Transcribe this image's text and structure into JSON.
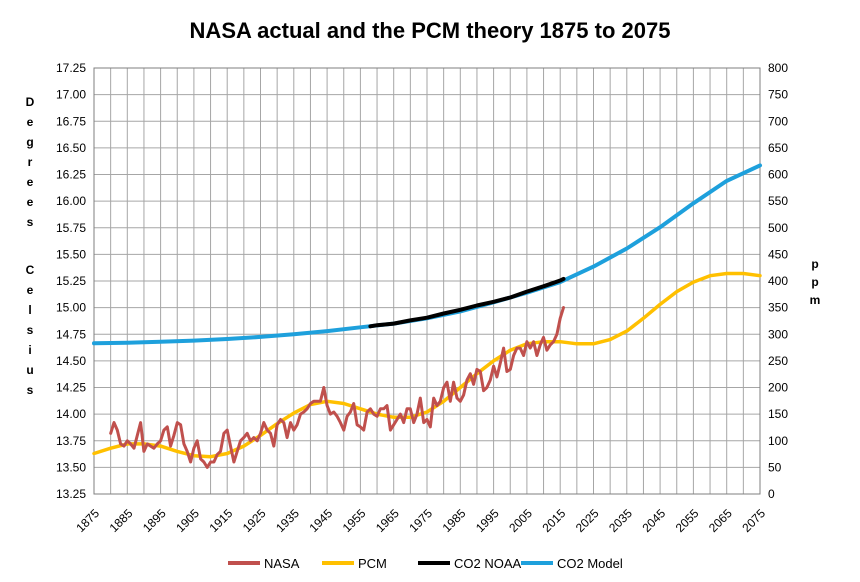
{
  "chart_data": {
    "type": "line",
    "title": "NASA actual and the PCM theory 1875 to 2075",
    "ylabel": "Degrees Celsius",
    "y2label": "ppm",
    "xlim": [
      1875,
      2075
    ],
    "ylim": [
      13.25,
      17.25
    ],
    "y2lim": [
      0,
      800
    ],
    "x_ticks": [
      "1875",
      "1885",
      "1895",
      "1905",
      "1915",
      "1925",
      "1935",
      "1945",
      "1955",
      "1965",
      "1975",
      "1985",
      "1995",
      "2005",
      "2015",
      "2025",
      "2035",
      "2045",
      "2055",
      "2065",
      "2075"
    ],
    "y_ticks": [
      "13.25",
      "13.50",
      "13.75",
      "14.00",
      "14.25",
      "14.50",
      "14.75",
      "15.00",
      "15.25",
      "15.50",
      "15.75",
      "16.00",
      "16.25",
      "16.50",
      "16.75",
      "17.00",
      "17.25"
    ],
    "y2_ticks": [
      "0",
      "50",
      "100",
      "150",
      "200",
      "250",
      "300",
      "350",
      "400",
      "450",
      "500",
      "550",
      "600",
      "650",
      "700",
      "750",
      "800"
    ],
    "grid": true,
    "legend_position": "bottom",
    "series": [
      {
        "name": "NASA",
        "color": "#c0504d",
        "axis": "left",
        "x": [
          1880,
          1881,
          1882,
          1883,
          1884,
          1885,
          1886,
          1887,
          1888,
          1889,
          1890,
          1891,
          1892,
          1893,
          1894,
          1895,
          1896,
          1897,
          1898,
          1899,
          1900,
          1901,
          1902,
          1903,
          1904,
          1905,
          1906,
          1907,
          1908,
          1909,
          1910,
          1911,
          1912,
          1913,
          1914,
          1915,
          1916,
          1917,
          1918,
          1919,
          1920,
          1921,
          1922,
          1923,
          1924,
          1925,
          1926,
          1927,
          1928,
          1929,
          1930,
          1931,
          1932,
          1933,
          1934,
          1935,
          1936,
          1937,
          1938,
          1939,
          1940,
          1941,
          1942,
          1943,
          1944,
          1945,
          1946,
          1947,
          1948,
          1949,
          1950,
          1951,
          1952,
          1953,
          1954,
          1955,
          1956,
          1957,
          1958,
          1959,
          1960,
          1961,
          1962,
          1963,
          1964,
          1965,
          1966,
          1967,
          1968,
          1969,
          1970,
          1971,
          1972,
          1973,
          1974,
          1975,
          1976,
          1977,
          1978,
          1979,
          1980,
          1981,
          1982,
          1983,
          1984,
          1985,
          1986,
          1987,
          1988,
          1989,
          1990,
          1991,
          1992,
          1993,
          1994,
          1995,
          1996,
          1997,
          1998,
          1999,
          2000,
          2001,
          2002,
          2003,
          2004,
          2005,
          2006,
          2007,
          2008,
          2009,
          2010,
          2011,
          2012,
          2013,
          2014,
          2015,
          2016
        ],
        "values": [
          13.82,
          13.92,
          13.85,
          13.72,
          13.7,
          13.75,
          13.72,
          13.68,
          13.8,
          13.92,
          13.65,
          13.72,
          13.7,
          13.68,
          13.72,
          13.75,
          13.85,
          13.88,
          13.7,
          13.8,
          13.92,
          13.9,
          13.72,
          13.65,
          13.55,
          13.68,
          13.75,
          13.58,
          13.55,
          13.5,
          13.55,
          13.55,
          13.62,
          13.65,
          13.82,
          13.85,
          13.7,
          13.55,
          13.65,
          13.75,
          13.78,
          13.82,
          13.75,
          13.78,
          13.75,
          13.82,
          13.92,
          13.85,
          13.82,
          13.7,
          13.9,
          13.95,
          13.92,
          13.78,
          13.92,
          13.85,
          13.9,
          14.0,
          14.02,
          14.05,
          14.1,
          14.12,
          14.12,
          14.12,
          14.25,
          14.08,
          14.0,
          14.02,
          13.98,
          13.92,
          13.85,
          13.98,
          14.02,
          14.1,
          13.9,
          13.88,
          13.85,
          14.02,
          14.05,
          14.0,
          13.98,
          14.05,
          14.05,
          14.08,
          13.85,
          13.9,
          13.95,
          14.0,
          13.92,
          14.05,
          14.05,
          13.92,
          14.0,
          14.15,
          13.92,
          13.95,
          13.88,
          14.15,
          14.08,
          14.12,
          14.25,
          14.3,
          14.12,
          14.3,
          14.15,
          14.12,
          14.18,
          14.32,
          14.38,
          14.28,
          14.42,
          14.4,
          14.22,
          14.25,
          14.32,
          14.45,
          14.35,
          14.48,
          14.62,
          14.4,
          14.42,
          14.55,
          14.62,
          14.62,
          14.55,
          14.68,
          14.62,
          14.68,
          14.55,
          14.65,
          14.72,
          14.6,
          14.65,
          14.68,
          14.75,
          14.9,
          15.0
        ]
      },
      {
        "name": "PCM",
        "color": "#ffc000",
        "axis": "left",
        "x": [
          1875,
          1880,
          1885,
          1890,
          1895,
          1900,
          1905,
          1910,
          1915,
          1920,
          1925,
          1930,
          1935,
          1940,
          1945,
          1950,
          1955,
          1960,
          1965,
          1970,
          1975,
          1980,
          1985,
          1990,
          1995,
          2000,
          2005,
          2010,
          2015,
          2020,
          2025,
          2030,
          2035,
          2040,
          2045,
          2050,
          2055,
          2060,
          2065,
          2070,
          2075
        ],
        "values": [
          13.63,
          13.68,
          13.72,
          13.72,
          13.7,
          13.65,
          13.61,
          13.6,
          13.63,
          13.7,
          13.8,
          13.91,
          14.01,
          14.09,
          14.12,
          14.1,
          14.05,
          14.0,
          13.97,
          13.97,
          14.02,
          14.12,
          14.25,
          14.38,
          14.5,
          14.6,
          14.66,
          14.68,
          14.68,
          14.66,
          14.66,
          14.7,
          14.78,
          14.9,
          15.03,
          15.15,
          15.24,
          15.3,
          15.32,
          15.32,
          15.3
        ]
      },
      {
        "name": "CO2 NOAA",
        "color": "#000000",
        "axis": "right",
        "x": [
          1958,
          1960,
          1965,
          1970,
          1975,
          1980,
          1985,
          1990,
          1995,
          2000,
          2005,
          2010,
          2015,
          2016
        ],
        "values": [
          315,
          317,
          320,
          326,
          331,
          339,
          346,
          354,
          361,
          369,
          380,
          390,
          401,
          404
        ]
      },
      {
        "name": "CO2 Model",
        "color": "#1ea0dc",
        "axis": "right",
        "x": [
          1875,
          1885,
          1895,
          1905,
          1915,
          1925,
          1935,
          1945,
          1955,
          1965,
          1975,
          1985,
          1995,
          2005,
          2015,
          2025,
          2035,
          2045,
          2055,
          2065,
          2075
        ],
        "values": [
          283,
          284,
          286,
          288,
          291,
          295,
          300,
          306,
          313,
          320,
          330,
          343,
          360,
          378,
          398,
          427,
          461,
          501,
          546,
          588,
          617
        ]
      }
    ]
  }
}
